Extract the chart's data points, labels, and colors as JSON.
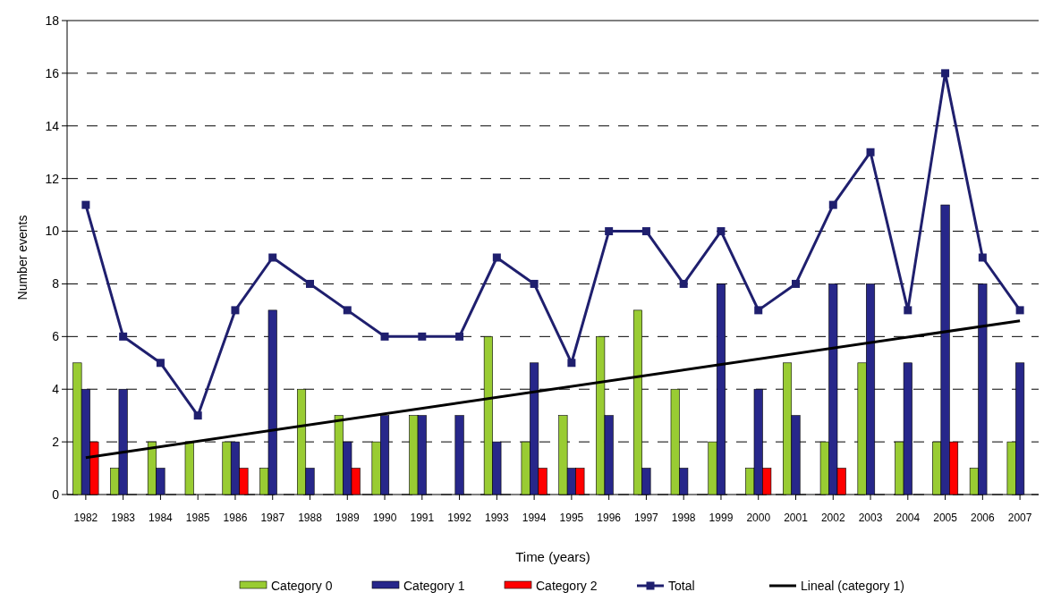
{
  "chart_data": {
    "type": "bar",
    "xlabel": "Time (years)",
    "ylabel": "Number events",
    "x": [
      1982,
      1983,
      1984,
      1985,
      1986,
      1987,
      1988,
      1989,
      1990,
      1991,
      1992,
      1993,
      1994,
      1995,
      1996,
      1997,
      1998,
      1999,
      2000,
      2001,
      2002,
      2003,
      2004,
      2005,
      2006,
      2007
    ],
    "series": [
      {
        "name": "Category 0",
        "color": "#99cc33",
        "values": [
          5,
          1,
          2,
          2,
          2,
          1,
          4,
          3,
          2,
          3,
          0,
          6,
          2,
          3,
          6,
          7,
          4,
          2,
          1,
          5,
          2,
          5,
          2,
          2,
          1,
          2
        ]
      },
      {
        "name": "Category 1",
        "color": "#27278a",
        "values": [
          4,
          4,
          1,
          0,
          2,
          7,
          1,
          2,
          3,
          3,
          3,
          2,
          5,
          1,
          3,
          1,
          1,
          8,
          4,
          3,
          8,
          8,
          5,
          11,
          8,
          5
        ]
      },
      {
        "name": "Category 2",
        "color": "#ff0000",
        "values": [
          2,
          0,
          0,
          0,
          1,
          0,
          0,
          1,
          0,
          0,
          0,
          0,
          1,
          1,
          0,
          0,
          0,
          0,
          1,
          0,
          1,
          0,
          0,
          2,
          0,
          0
        ]
      },
      {
        "name": "Total",
        "type": "line",
        "color": "#1f1f6e",
        "marker": "square",
        "values": [
          11,
          6,
          5,
          3,
          7,
          9,
          8,
          7,
          6,
          6,
          6,
          9,
          8,
          5,
          10,
          10,
          8,
          10,
          7,
          8,
          11,
          13,
          7,
          16,
          9,
          7
        ]
      },
      {
        "name": "Lineal (category 1)",
        "type": "line",
        "color": "#000000",
        "marker": "none",
        "x": [
          1982,
          2007
        ],
        "values": [
          1.4,
          6.6
        ]
      }
    ],
    "xlim": [
      1981.5,
      2007.5
    ],
    "xticks": [
      1982,
      1983,
      1984,
      1985,
      1986,
      1987,
      1988,
      1989,
      1990,
      1991,
      1992,
      1993,
      1994,
      1995,
      1996,
      1997,
      1998,
      1999,
      2000,
      2001,
      2002,
      2003,
      2004,
      2005,
      2006,
      2007
    ],
    "ylim": [
      0,
      18
    ],
    "yticks": [
      0,
      2,
      4,
      6,
      8,
      10,
      12,
      14,
      16,
      18
    ],
    "grid": "y",
    "legend": "bottom"
  }
}
